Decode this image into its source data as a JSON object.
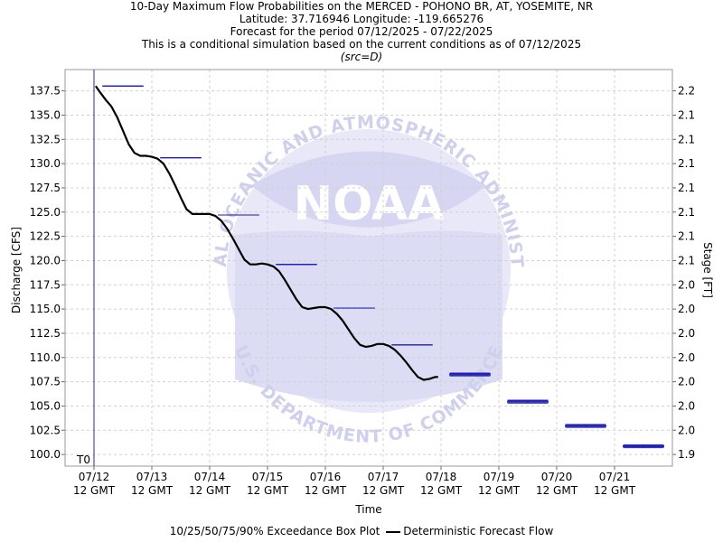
{
  "title_lines": [
    "10-Day Maximum Flow Probabilities on the MERCED - POHONO BR, AT, YOSEMITE, NR",
    "Latitude: 37.716946 Longitude: -119.665276",
    "Forecast for the period 07/12/2025 - 07/22/2025",
    "This is a conditional simulation based on the current conditions as of 07/12/2025"
  ],
  "source_line": "(src=D)",
  "watermark": {
    "logo_text": "NOAA",
    "ring_text_top": "NATIONAL OCEANIC AND ATMOSPHERIC ADMINISTRATION",
    "ring_text_bottom": "U.S. DEPARTMENT OF COMMERCE"
  },
  "legend": {
    "boxplot_label": "10/25/50/75/90% Exceedance Box Plot",
    "line_label": "Deterministic Forecast Flow"
  },
  "colors": {
    "forecast_line": "#000000",
    "box_plot": "#1c1cb4",
    "t0_marker": "#2a2a80",
    "grid": "#d0d0d0",
    "watermark_blue": "#dcdcf5"
  },
  "chart_data": {
    "type": "line",
    "title": "10-Day Maximum Flow Probabilities on the MERCED - POHONO BR, AT, YOSEMITE, NR",
    "xlabel": "Time",
    "ylabel": "Discharge [CFS]",
    "ylabel_right": "Stage [FT]",
    "x_range_days": [
      -0.5,
      10.0
    ],
    "ylim": [
      98.8,
      139.7
    ],
    "grid": true,
    "legend_position": "bottom",
    "t0_label": "T0",
    "t0_day": 0.0,
    "x_ticks": [
      {
        "day": 0,
        "date": "07/12",
        "time": "12 GMT"
      },
      {
        "day": 1,
        "date": "07/13",
        "time": "12 GMT"
      },
      {
        "day": 2,
        "date": "07/14",
        "time": "12 GMT"
      },
      {
        "day": 3,
        "date": "07/15",
        "time": "12 GMT"
      },
      {
        "day": 4,
        "date": "07/16",
        "time": "12 GMT"
      },
      {
        "day": 5,
        "date": "07/17",
        "time": "12 GMT"
      },
      {
        "day": 6,
        "date": "07/18",
        "time": "12 GMT"
      },
      {
        "day": 7,
        "date": "07/19",
        "time": "12 GMT"
      },
      {
        "day": 8,
        "date": "07/20",
        "time": "12 GMT"
      },
      {
        "day": 9,
        "date": "07/21",
        "time": "12 GMT"
      }
    ],
    "y_ticks_left": [
      "100.0",
      "102.5",
      "105.0",
      "107.5",
      "110.0",
      "112.5",
      "115.0",
      "117.5",
      "120.0",
      "122.5",
      "125.0",
      "127.5",
      "130.0",
      "132.5",
      "135.0",
      "137.5"
    ],
    "y_ticks_right": [
      "1.9",
      "2.0",
      "2.0",
      "2.0",
      "2.0",
      "2.0",
      "2.0",
      "2.0",
      "2.1",
      "2.1",
      "2.1",
      "2.1",
      "2.1",
      "2.1",
      "2.1",
      "2.2"
    ],
    "series": [
      {
        "name": "Deterministic Forecast Flow",
        "points": [
          [
            0.03,
            138.0
          ],
          [
            0.1,
            137.4
          ],
          [
            0.2,
            136.6
          ],
          [
            0.3,
            135.9
          ],
          [
            0.4,
            134.8
          ],
          [
            0.5,
            133.4
          ],
          [
            0.6,
            132.0
          ],
          [
            0.7,
            131.1
          ],
          [
            0.8,
            130.8
          ],
          [
            0.9,
            130.8
          ],
          [
            1.0,
            130.7
          ],
          [
            1.1,
            130.5
          ],
          [
            1.2,
            130.0
          ],
          [
            1.3,
            129.0
          ],
          [
            1.4,
            127.8
          ],
          [
            1.5,
            126.5
          ],
          [
            1.6,
            125.3
          ],
          [
            1.7,
            124.8
          ],
          [
            1.8,
            124.8
          ],
          [
            1.9,
            124.8
          ],
          [
            2.0,
            124.8
          ],
          [
            2.1,
            124.6
          ],
          [
            2.2,
            124.1
          ],
          [
            2.3,
            123.3
          ],
          [
            2.4,
            122.3
          ],
          [
            2.5,
            121.2
          ],
          [
            2.6,
            120.1
          ],
          [
            2.7,
            119.6
          ],
          [
            2.8,
            119.6
          ],
          [
            2.9,
            119.7
          ],
          [
            3.0,
            119.6
          ],
          [
            3.1,
            119.4
          ],
          [
            3.2,
            118.9
          ],
          [
            3.3,
            118.0
          ],
          [
            3.4,
            117.0
          ],
          [
            3.5,
            116.0
          ],
          [
            3.6,
            115.2
          ],
          [
            3.7,
            115.0
          ],
          [
            3.8,
            115.1
          ],
          [
            3.9,
            115.2
          ],
          [
            4.0,
            115.2
          ],
          [
            4.1,
            115.0
          ],
          [
            4.2,
            114.5
          ],
          [
            4.3,
            113.8
          ],
          [
            4.4,
            112.9
          ],
          [
            4.5,
            112.0
          ],
          [
            4.6,
            111.3
          ],
          [
            4.7,
            111.1
          ],
          [
            4.8,
            111.2
          ],
          [
            4.9,
            111.4
          ],
          [
            5.0,
            111.4
          ],
          [
            5.1,
            111.2
          ],
          [
            5.2,
            110.8
          ],
          [
            5.3,
            110.2
          ],
          [
            5.4,
            109.5
          ],
          [
            5.5,
            108.7
          ],
          [
            5.6,
            108.0
          ],
          [
            5.7,
            107.7
          ],
          [
            5.8,
            107.8
          ],
          [
            5.9,
            108.0
          ],
          [
            5.95,
            108.0
          ]
        ]
      }
    ],
    "box_plots": [
      {
        "day": 0.5,
        "p10": 138.0,
        "p25": 138.0,
        "p50": 138.0,
        "p75": 138.0,
        "p90": 138.0
      },
      {
        "day": 1.5,
        "p10": 130.6,
        "p25": 130.6,
        "p50": 130.6,
        "p75": 130.6,
        "p90": 130.6
      },
      {
        "day": 2.5,
        "p10": 124.7,
        "p25": 124.7,
        "p50": 124.7,
        "p75": 124.7,
        "p90": 124.7
      },
      {
        "day": 3.5,
        "p10": 119.6,
        "p25": 119.6,
        "p50": 119.6,
        "p75": 119.6,
        "p90": 119.6
      },
      {
        "day": 4.5,
        "p10": 115.1,
        "p25": 115.1,
        "p50": 115.1,
        "p75": 115.1,
        "p90": 115.1
      },
      {
        "day": 5.5,
        "p10": 111.3,
        "p25": 111.3,
        "p50": 111.3,
        "p75": 111.3,
        "p90": 111.3
      },
      {
        "day": 6.5,
        "p10": 108.1,
        "p25": 108.2,
        "p50": 108.3,
        "p75": 108.3,
        "p90": 108.4
      },
      {
        "day": 7.5,
        "p10": 105.3,
        "p25": 105.4,
        "p50": 105.5,
        "p75": 105.5,
        "p90": 105.6
      },
      {
        "day": 8.5,
        "p10": 102.8,
        "p25": 102.9,
        "p50": 103.0,
        "p75": 103.0,
        "p90": 103.1
      },
      {
        "day": 9.5,
        "p10": 100.7,
        "p25": 100.8,
        "p50": 100.9,
        "p75": 100.9,
        "p90": 101.0
      }
    ]
  }
}
